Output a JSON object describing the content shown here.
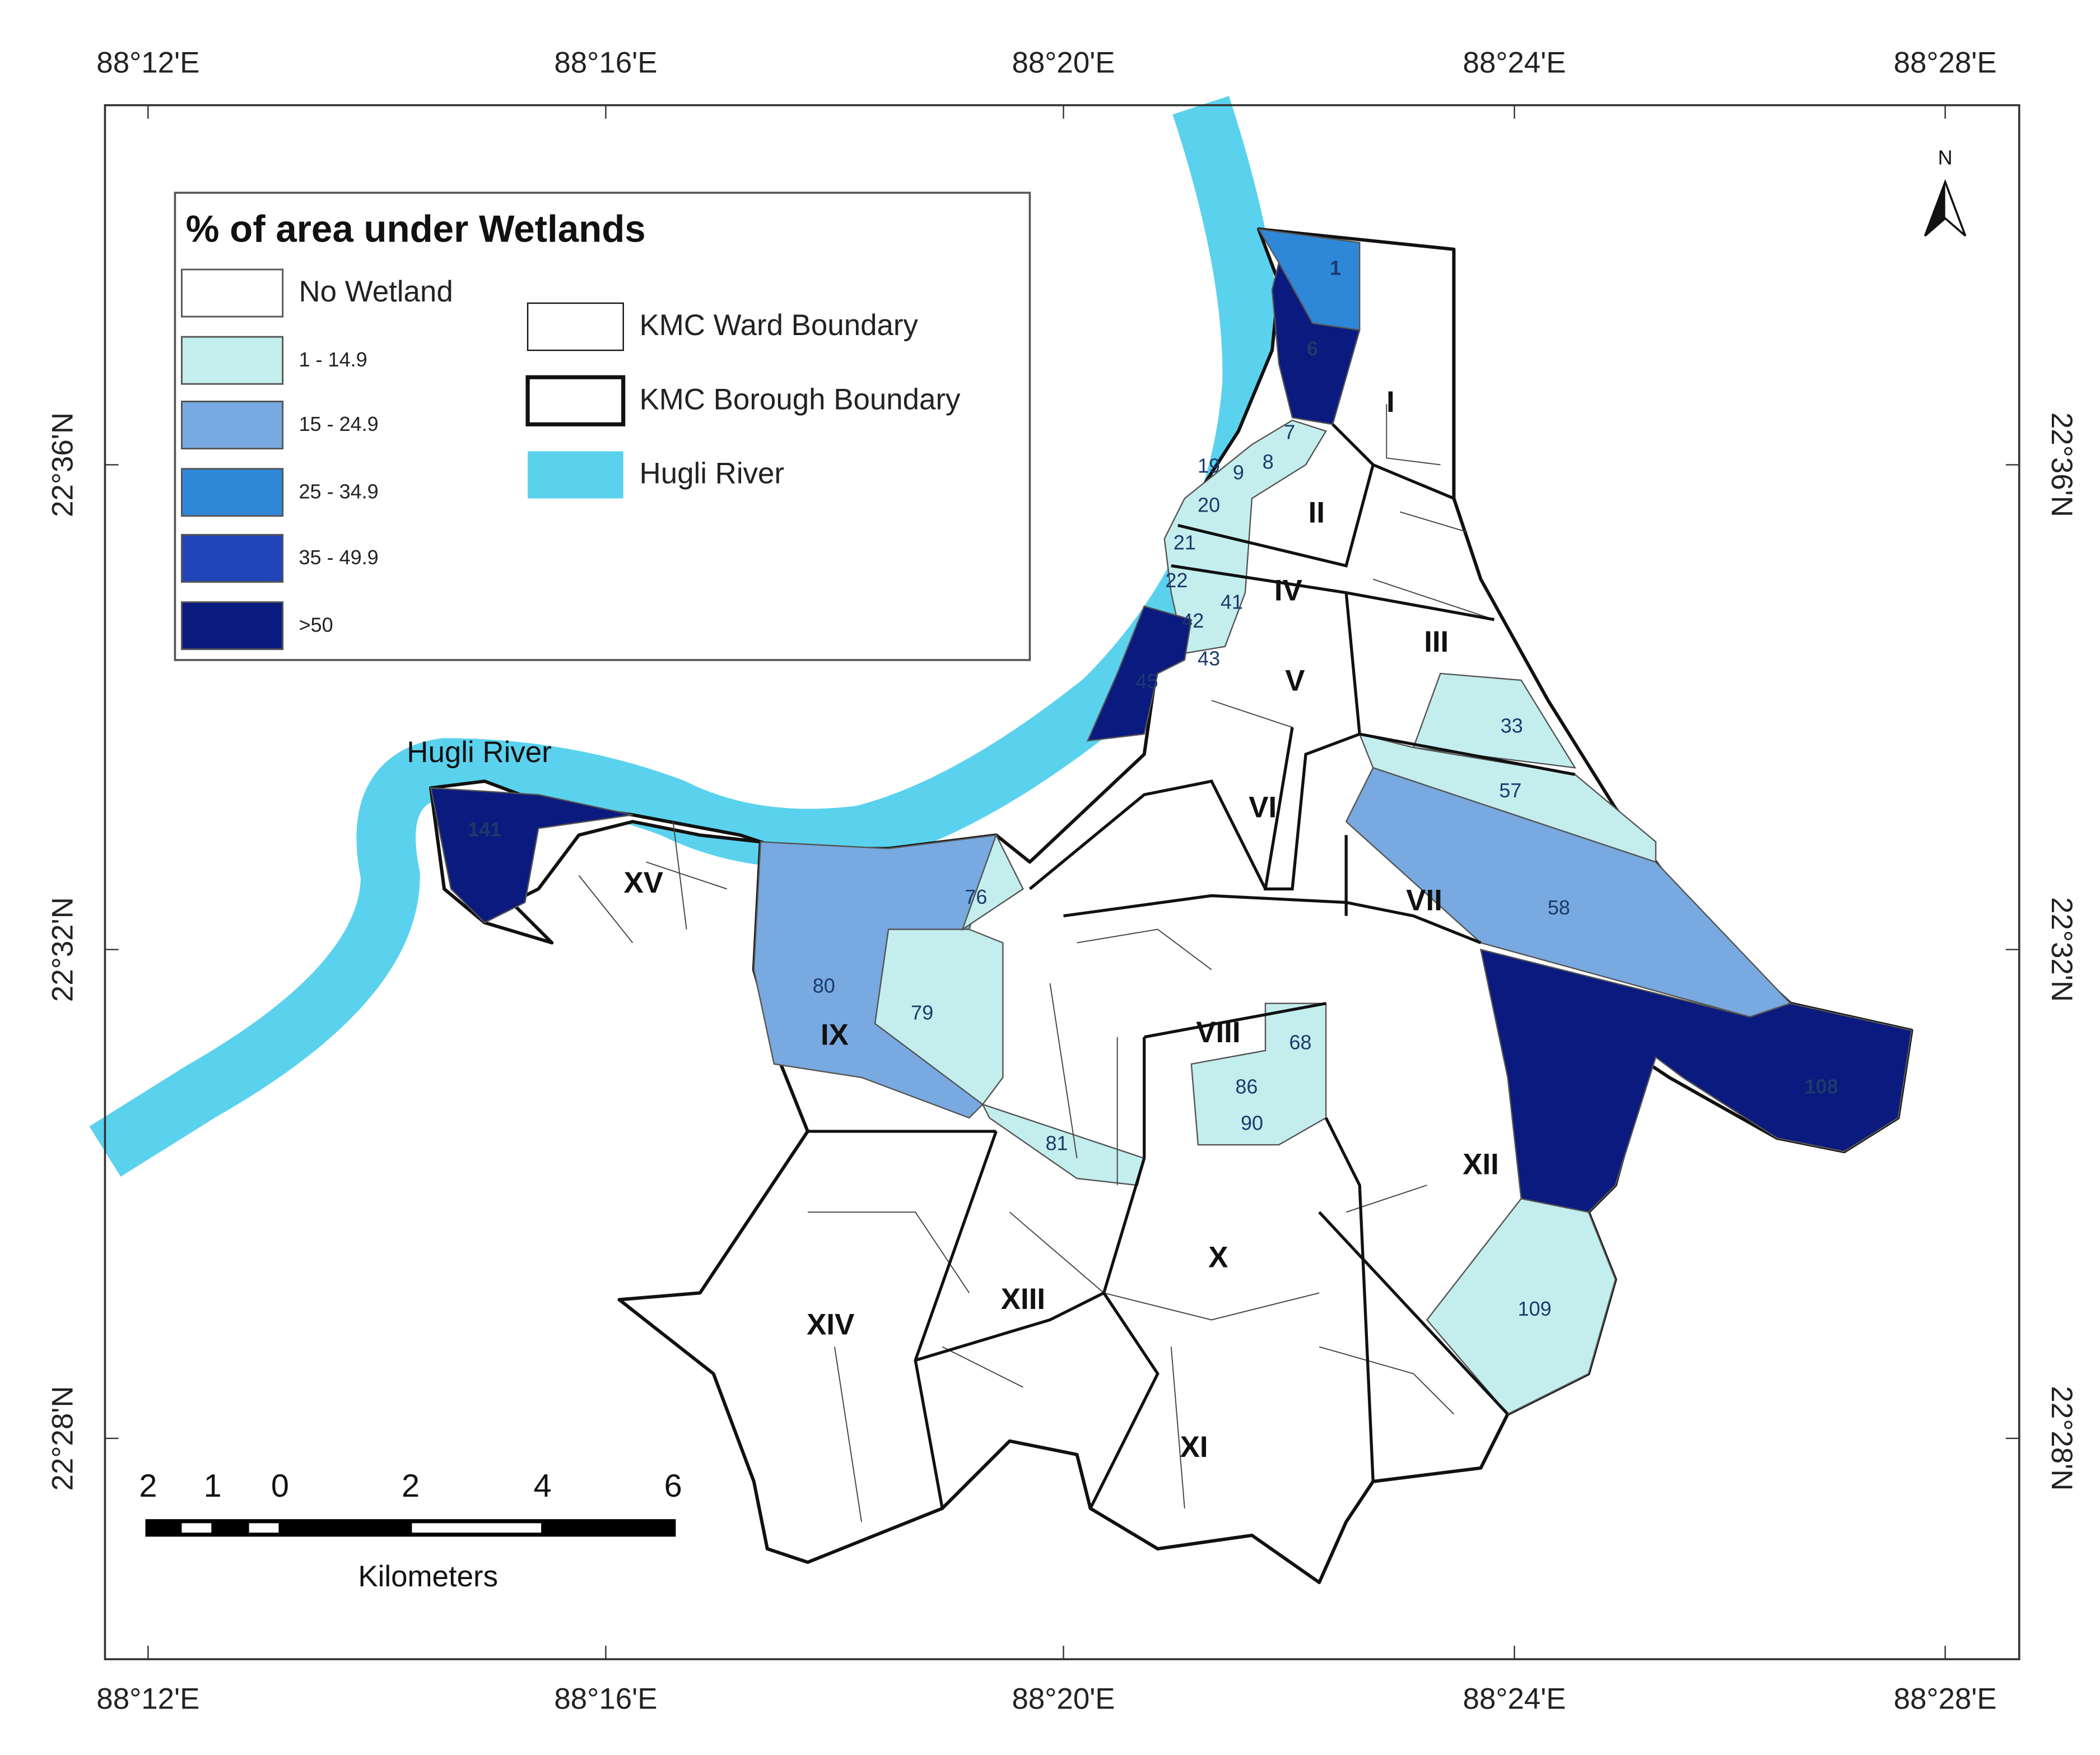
{
  "legend": {
    "title": "% of area under Wetlands",
    "classes": [
      {
        "label": "No Wetland",
        "color": "#ffffff"
      },
      {
        "label": "1 - 14.9",
        "color": "#c4eeee"
      },
      {
        "label": "15 - 24.9",
        "color": "#78a9e0"
      },
      {
        "label": "25 - 34.9",
        "color": "#2f87d8"
      },
      {
        "label": "35 - 49.9",
        "color": "#1f45b8"
      },
      {
        "label": ">50",
        "color": "#0b1a7e"
      }
    ],
    "boundaries": [
      "KMC Ward Boundary",
      "KMC Borough Boundary",
      "Hugli River"
    ]
  },
  "longitude_labels": [
    "88°12'E",
    "88°16'E",
    "88°20'E",
    "88°24'E",
    "88°28'E"
  ],
  "latitude_labels": [
    "22°36'N",
    "22°32'N",
    "22°28'N"
  ],
  "river_label": "Hugli River",
  "north": "N",
  "boroughs": [
    "I",
    "II",
    "III",
    "IV",
    "V",
    "VI",
    "VII",
    "VIII",
    "IX",
    "X",
    "XI",
    "XII",
    "XIII",
    "XIV",
    "XV"
  ],
  "wards": [
    "1",
    "6",
    "7",
    "8",
    "9",
    "19",
    "20",
    "21",
    "22",
    "41",
    "42",
    "43",
    "45",
    "33",
    "57",
    "58",
    "108",
    "109",
    "141",
    "80",
    "79",
    "76",
    "81",
    "68",
    "86",
    "90"
  ],
  "scale_bar": {
    "ticks": [
      "2",
      "1",
      "0",
      "2",
      "4",
      "6"
    ],
    "unit": "Kilometers"
  }
}
